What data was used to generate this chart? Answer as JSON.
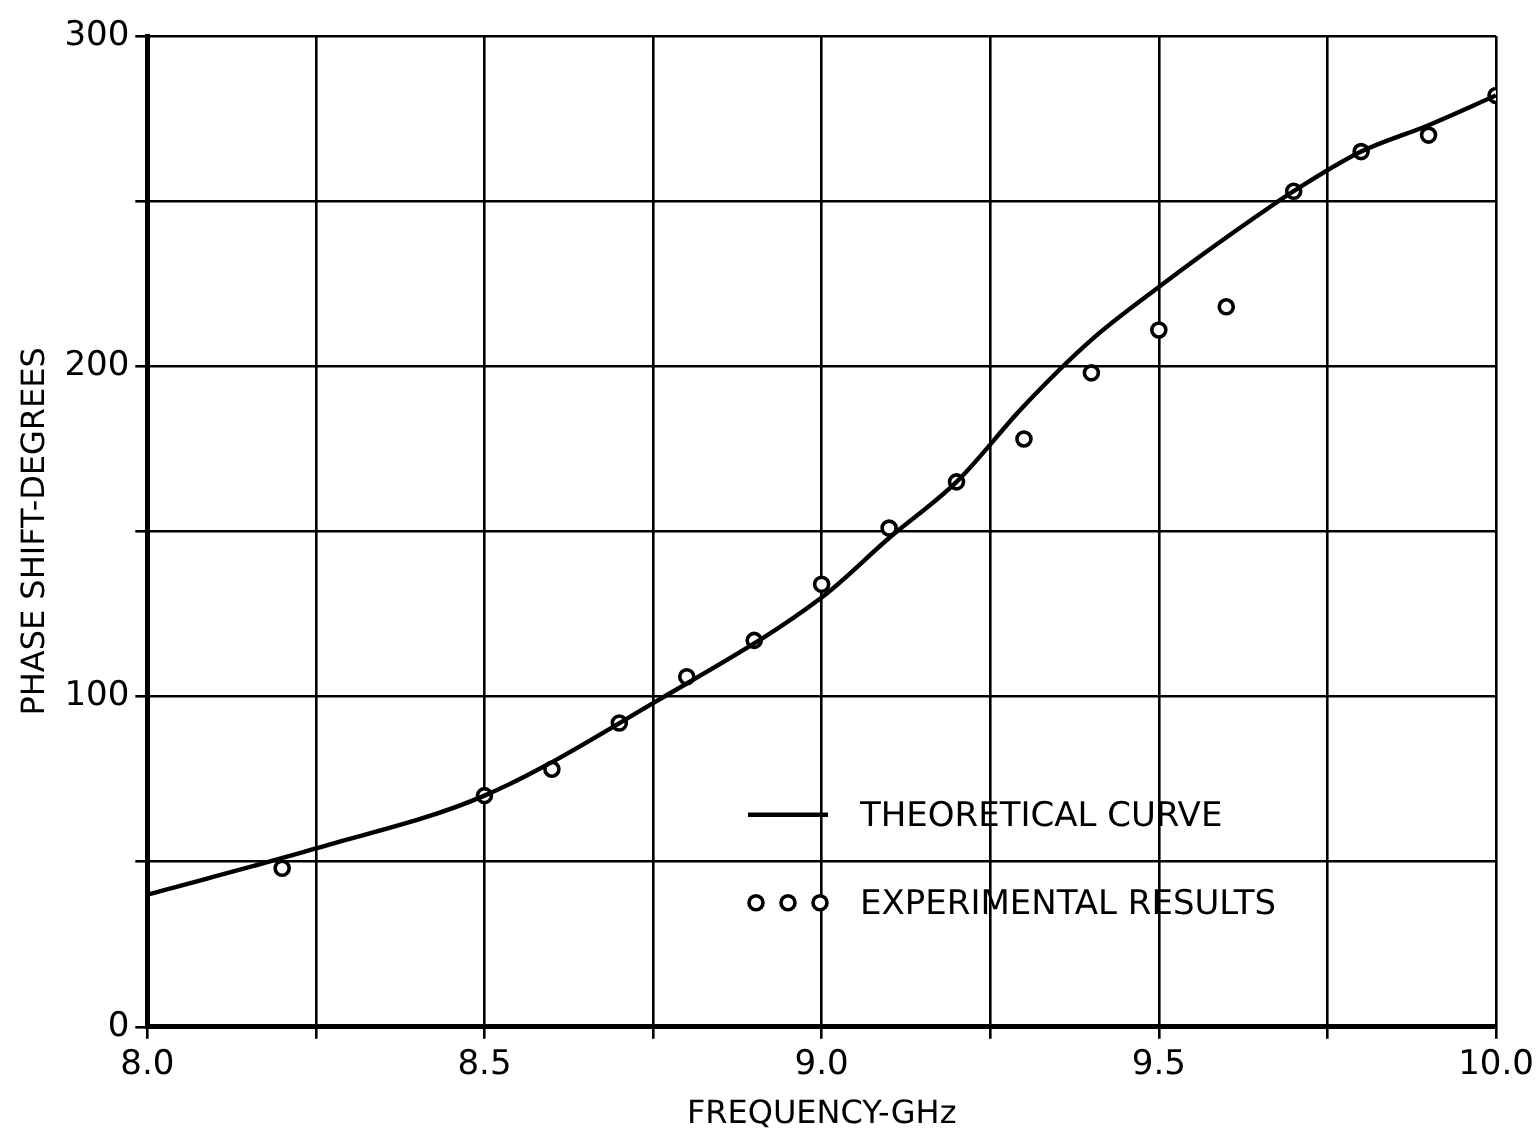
{
  "chart_data": {
    "type": "line",
    "xlabel": "FREQUENCY-GHz",
    "ylabel": "PHASE SHIFT-DEGREES",
    "xlim": [
      8.0,
      10.0
    ],
    "xticks": [
      {
        "value": 8.0,
        "label": "8.0"
      },
      {
        "value": 8.25,
        "label": null
      },
      {
        "value": 8.5,
        "label": "8.5"
      },
      {
        "value": 8.75,
        "label": null
      },
      {
        "value": 9.0,
        "label": "9.0"
      },
      {
        "value": 9.25,
        "label": null
      },
      {
        "value": 9.5,
        "label": "9.5"
      },
      {
        "value": 9.75,
        "label": null
      },
      {
        "value": 10.0,
        "label": "10.0"
      }
    ],
    "ylim": [
      0,
      300
    ],
    "yticks": [
      0,
      {
        "value": 50,
        "label": null
      },
      100,
      {
        "value": 150,
        "label": null
      },
      200,
      {
        "value": 250,
        "label": null
      },
      300
    ],
    "grid": true,
    "legend": "bottom right",
    "line_style": "solid",
    "series": [
      {
        "name": "THEORETICAL CURVE",
        "marker": "none",
        "color": "#000000",
        "x": [
          8.0,
          8.25,
          8.5,
          8.75,
          9.0,
          9.1,
          9.2,
          9.3,
          9.4,
          9.5,
          9.6,
          9.7,
          9.8,
          9.9,
          10.0
        ],
        "values": [
          40,
          54,
          70,
          98,
          130,
          148,
          165,
          188,
          208,
          224,
          239,
          253,
          265,
          273,
          282
        ]
      },
      {
        "name": "EXPERIMENTAL RESULTS",
        "type": "scatter",
        "marker": "circle",
        "color": "#000000",
        "x": [
          8.2,
          8.5,
          8.6,
          8.7,
          8.8,
          8.9,
          9.0,
          9.1,
          9.2,
          9.3,
          9.4,
          9.5,
          9.6,
          9.7,
          9.8,
          9.9,
          10.0
        ],
        "values": [
          48,
          70,
          78,
          92,
          106,
          117,
          134,
          151,
          165,
          178,
          198,
          211,
          218,
          253,
          265,
          270,
          282
        ]
      }
    ]
  }
}
